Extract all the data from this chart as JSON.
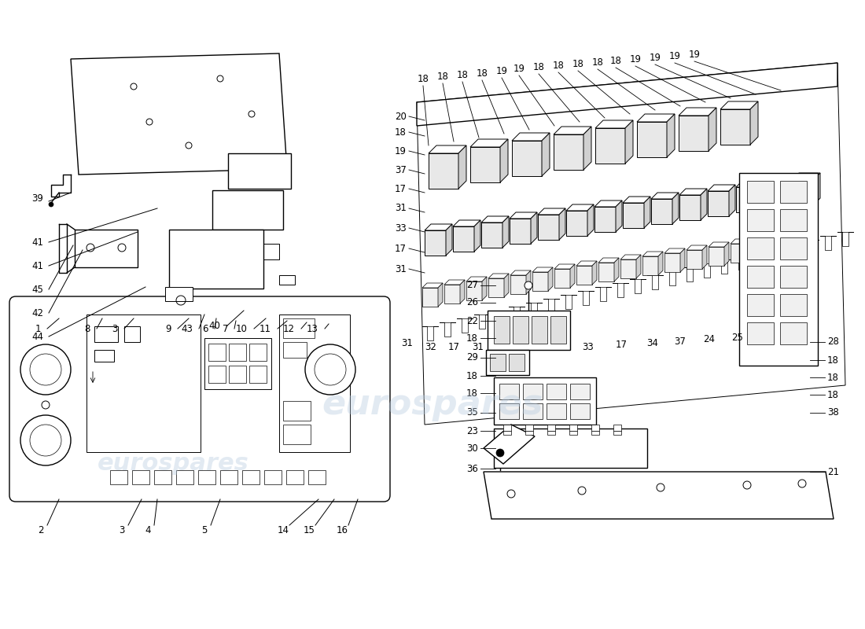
{
  "background_color": "#ffffff",
  "line_color": "#000000",
  "watermark_text": "eurospares",
  "watermark_color": "#b8cce0",
  "watermark_alpha": 0.4,
  "fig_width": 11.0,
  "fig_height": 8.0,
  "dpi": 100
}
